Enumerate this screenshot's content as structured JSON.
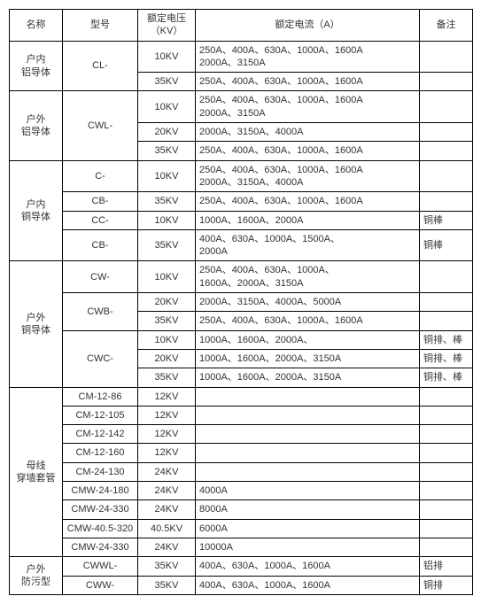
{
  "headers": {
    "name": "名称",
    "model": "型号",
    "voltage": "额定电压（KV）",
    "current": "额定电流（A）",
    "remark": "备注"
  },
  "groups": [
    {
      "name": "户内\n铝导体",
      "models": [
        {
          "model": "CL-",
          "voltages": [
            {
              "v": "10KV",
              "current": "250A、400A、630A、1000A、1600A\n2000A、3150A",
              "remark": ""
            },
            {
              "v": "35KV",
              "current": "250A、400A、630A、1000A、1600A",
              "remark": ""
            }
          ]
        }
      ]
    },
    {
      "name": "户外\n铝导体",
      "models": [
        {
          "model": "CWL-",
          "voltages": [
            {
              "v": "10KV",
              "current": "250A、400A、630A、1000A、1600A\n2000A、3150A",
              "remark": ""
            },
            {
              "v": "20KV",
              "current": "2000A、3150A、4000A",
              "remark": ""
            },
            {
              "v": "35KV",
              "current": "250A、400A、630A、1000A、1600A",
              "remark": ""
            }
          ]
        }
      ]
    },
    {
      "name": "户内\n铜导体",
      "models": [
        {
          "model": "C-",
          "voltages": [
            {
              "v": "10KV",
              "current": "250A、400A、630A、1000A、1600A\n2000A、3150A、4000A",
              "remark": ""
            }
          ]
        },
        {
          "model": "CB-",
          "voltages": [
            {
              "v": "35KV",
              "current": "250A、400A、630A、1000A、1600A",
              "remark": ""
            }
          ]
        },
        {
          "model": "CC-",
          "voltages": [
            {
              "v": "10KV",
              "current": "1000A、1600A、2000A",
              "remark": "铜棒"
            }
          ]
        },
        {
          "model": "CB-",
          "voltages": [
            {
              "v": "35KV",
              "current": "400A、630A、1000A、1500A、\n2000A",
              "remark": "铜棒"
            }
          ]
        }
      ]
    },
    {
      "name": "户外\n铜导体",
      "models": [
        {
          "model": "CW-",
          "voltages": [
            {
              "v": "10KV",
              "current": "250A、400A、630A、1000A、\n1600A、2000A、3150A",
              "remark": ""
            }
          ]
        },
        {
          "model": "CWB-",
          "voltages": [
            {
              "v": "20KV",
              "current": "2000A、3150A、4000A、5000A",
              "remark": ""
            },
            {
              "v": "35KV",
              "current": "250A、400A、630A、1000A、1600A",
              "remark": ""
            }
          ]
        },
        {
          "model": "CWC-",
          "voltages": [
            {
              "v": "10KV",
              "current": "1000A、1600A、2000A、",
              "remark": "铜排、棒"
            },
            {
              "v": "20KV",
              "current": "1000A、1600A、2000A、3150A",
              "remark": "铜排、棒"
            },
            {
              "v": "35KV",
              "current": "1000A、1600A、2000A、3150A",
              "remark": "铜排、棒"
            }
          ]
        }
      ]
    },
    {
      "name": "母线\n穿墙套管",
      "models": [
        {
          "model": "CM-12-86",
          "voltages": [
            {
              "v": "12KV",
              "current": "",
              "remark": ""
            }
          ]
        },
        {
          "model": "CM-12-105",
          "voltages": [
            {
              "v": "12KV",
              "current": "",
              "remark": ""
            }
          ]
        },
        {
          "model": "CM-12-142",
          "voltages": [
            {
              "v": "12KV",
              "current": "",
              "remark": ""
            }
          ]
        },
        {
          "model": "CM-12-160",
          "voltages": [
            {
              "v": "12KV",
              "current": "",
              "remark": ""
            }
          ]
        },
        {
          "model": "CM-24-130",
          "voltages": [
            {
              "v": "24KV",
              "current": "",
              "remark": ""
            }
          ]
        },
        {
          "model": "CMW-24-180",
          "voltages": [
            {
              "v": "24KV",
              "current": "4000A",
              "remark": ""
            }
          ]
        },
        {
          "model": "CMW-24-330",
          "voltages": [
            {
              "v": "24KV",
              "current": "8000A",
              "remark": ""
            }
          ]
        },
        {
          "model": "CMW-40.5-320",
          "voltages": [
            {
              "v": "40.5KV",
              "current": "6000A",
              "remark": ""
            }
          ]
        },
        {
          "model": "CMW-24-330",
          "voltages": [
            {
              "v": "24KV",
              "current": "10000A",
              "remark": ""
            }
          ]
        }
      ]
    },
    {
      "name": "户外\n防污型",
      "models": [
        {
          "model": "CWWL-",
          "voltages": [
            {
              "v": "35KV",
              "current": "400A、630A、1000A、1600A",
              "remark": "铝排"
            }
          ]
        },
        {
          "model": "CWW-",
          "voltages": [
            {
              "v": "35KV",
              "current": "400A、630A、1000A、1600A",
              "remark": "铜排"
            }
          ]
        }
      ]
    }
  ]
}
